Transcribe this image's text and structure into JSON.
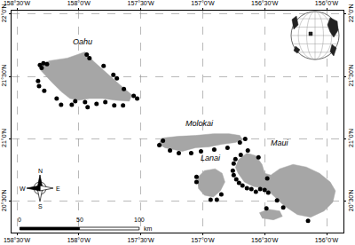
{
  "chart_data": {
    "type": "map",
    "xlim": [
      -158.543,
      -155.864
    ],
    "ylim": [
      20.25,
      22.028
    ],
    "xticks": [
      {
        "value": -158.5,
        "label": "158°30'W"
      },
      {
        "value": -158.0,
        "label": "158°0'W"
      },
      {
        "value": -157.5,
        "label": "157°30'W"
      },
      {
        "value": -157.0,
        "label": "157°0'W"
      },
      {
        "value": -156.5,
        "label": "156°30'W"
      },
      {
        "value": -156.0,
        "label": "156°0'W"
      }
    ],
    "yticks": [
      {
        "value": 20.5,
        "label": "20°30'N"
      },
      {
        "value": 21.0,
        "label": "21°0'N"
      },
      {
        "value": 21.5,
        "label": "21°30'N"
      },
      {
        "value": 22.0,
        "label": "22°0'N"
      }
    ],
    "grid": true,
    "islands": [
      {
        "name": "Oahu",
        "color": "#a6a6a6",
        "lon": [
          -158.321,
          -158.236,
          -158.093,
          -157.95,
          -157.879,
          -157.786,
          -157.664,
          -157.571,
          -157.593,
          -157.7,
          -157.807,
          -157.914,
          -158.0,
          -158.071,
          -158.143,
          -158.214,
          -158.271,
          -158.307
        ],
        "lat": [
          21.592,
          21.627,
          21.648,
          21.697,
          21.62,
          21.535,
          21.43,
          21.352,
          21.303,
          21.31,
          21.324,
          21.324,
          21.31,
          21.324,
          21.38,
          21.451,
          21.507,
          21.549
        ]
      },
      {
        "name": "Molokai",
        "color": "#a6a6a6",
        "lon": [
          -157.357,
          -157.329,
          -157.2,
          -157.057,
          -156.914,
          -156.786,
          -156.7,
          -156.679,
          -156.736,
          -156.843,
          -156.95,
          -157.057,
          -157.164,
          -157.236,
          -157.307
        ],
        "lat": [
          20.958,
          21.007,
          21.021,
          21.028,
          21.042,
          21.042,
          21.028,
          20.993,
          20.972,
          20.958,
          20.937,
          20.93,
          20.901,
          20.915,
          20.93
        ]
      },
      {
        "name": "Lanai",
        "color": "#a6a6a6",
        "lon": [
          -157.043,
          -156.986,
          -156.9,
          -156.843,
          -156.821,
          -156.857,
          -156.914,
          -156.986,
          -157.036
        ],
        "lat": [
          20.69,
          20.746,
          20.761,
          20.725,
          20.655,
          20.585,
          20.535,
          20.549,
          20.606
        ]
      },
      {
        "name": "Maui",
        "color": "#a6a6a6",
        "lon": [
          -156.714,
          -156.643,
          -156.571,
          -156.521,
          -156.5,
          -156.45,
          -156.379,
          -156.271,
          -156.164,
          -156.057,
          -155.971,
          -155.929,
          -155.95,
          -156.021,
          -156.129,
          -156.236,
          -156.343,
          -156.414,
          -156.471,
          -156.521,
          -156.593,
          -156.664,
          -156.714,
          -156.736
        ],
        "lat": [
          20.831,
          20.887,
          20.866,
          20.796,
          20.725,
          20.711,
          20.761,
          20.796,
          20.775,
          20.725,
          20.655,
          20.585,
          20.493,
          20.423,
          20.373,
          20.394,
          20.465,
          20.535,
          20.585,
          20.606,
          20.62,
          20.655,
          20.725,
          20.775
        ]
      },
      {
        "color": "#a6a6a6",
        "lon": [
          -156.543,
          -156.471,
          -156.379,
          -156.357,
          -156.429,
          -156.521
        ],
        "lat": [
          20.408,
          20.437,
          20.423,
          20.38,
          20.352,
          20.366
        ]
      }
    ],
    "sites": {
      "color": "#000000",
      "marker": "circle",
      "lon": [
        -158.314,
        -158.286,
        -158.257,
        -158.3,
        -158.329,
        -158.321,
        -158.279,
        -157.936,
        -157.914,
        -157.8,
        -157.721,
        -157.693,
        -157.636,
        -157.557,
        -157.529,
        -158.179,
        -158.143,
        -158.057,
        -158.029,
        -157.95,
        -157.929,
        -157.857,
        -157.786,
        -157.714,
        -157.643,
        -157.35,
        -157.321,
        -157.264,
        -157.193,
        -157.093,
        -157.014,
        -156.907,
        -156.8,
        -156.7,
        -156.657,
        -157.05,
        -157.05,
        -156.936,
        -156.886,
        -156.85,
        -156.75,
        -156.736,
        -156.693,
        -156.636,
        -156.55,
        -156.757,
        -156.75,
        -156.729,
        -156.707,
        -156.679,
        -156.643,
        -156.607,
        -156.571,
        -156.536,
        -156.5,
        -156.471,
        -156.479,
        -156.4,
        -156.35,
        -156.15,
        -156.486
      ],
      "lat": [
        21.592,
        21.606,
        21.599,
        21.57,
        21.465,
        21.423,
        21.387,
        21.676,
        21.648,
        21.585,
        21.514,
        21.486,
        21.401,
        21.345,
        21.324,
        21.324,
        21.275,
        21.275,
        21.303,
        21.296,
        21.254,
        21.282,
        21.296,
        21.268,
        21.268,
        20.951,
        20.986,
        20.908,
        20.887,
        20.887,
        20.901,
        20.915,
        20.93,
        20.972,
        21.0,
        20.697,
        20.655,
        20.514,
        20.514,
        20.556,
        20.803,
        20.838,
        20.873,
        20.908,
        20.852,
        20.746,
        20.711,
        20.676,
        20.648,
        20.627,
        20.606,
        20.599,
        20.577,
        20.599,
        20.592,
        20.57,
        20.683,
        20.507,
        20.451,
        20.345,
        20.444
      ]
    },
    "scale_bar": {
      "ticks": [
        0,
        50,
        100
      ],
      "unit": "km"
    },
    "north_arrow": {
      "labels": {
        "north": "N",
        "east": "E",
        "south": "S",
        "west": "W"
      }
    }
  }
}
